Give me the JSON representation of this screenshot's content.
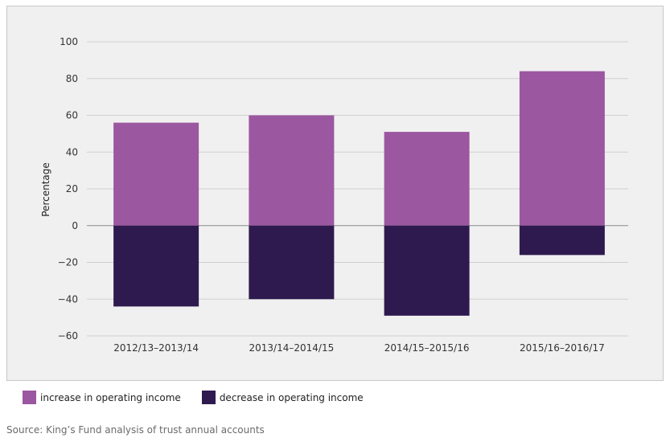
{
  "chart_data": {
    "type": "bar",
    "stacked": true,
    "categories": [
      "2012/13–2013/14",
      "2013/14–2014/15",
      "2014/15–2015/16",
      "2015/16–2016/17"
    ],
    "series": [
      {
        "name": "increase in operating income",
        "values": [
          56,
          60,
          51,
          84
        ],
        "color": "#9b57a0"
      },
      {
        "name": "decrease in operating income",
        "values": [
          -44,
          -40,
          -49,
          -16
        ],
        "color": "#2e1a4f"
      }
    ],
    "ylabel": "Percentage",
    "ylim": [
      -60,
      100
    ],
    "yticks": [
      100,
      80,
      60,
      40,
      20,
      0,
      -20,
      -40,
      -60
    ],
    "ytick_labels": [
      "100",
      "80",
      "60",
      "40",
      "20",
      "0",
      "−20",
      "−40",
      "−60"
    ],
    "grid": true,
    "legend": "bottom-left"
  },
  "source": "Source: King’s Fund analysis of trust annual accounts"
}
